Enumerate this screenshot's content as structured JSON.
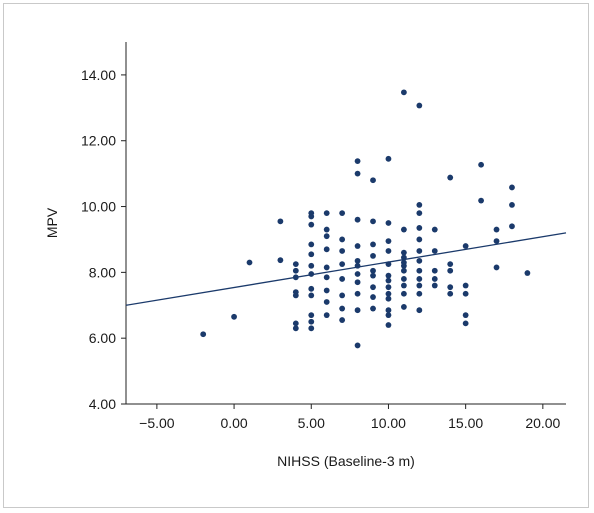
{
  "chart_data": {
    "type": "scatter",
    "title": "",
    "xlabel": "NIHSS (Baseline-3 m)",
    "ylabel": "MPV",
    "xlim": [
      -7,
      21.5
    ],
    "ylim": [
      4.0,
      15.0
    ],
    "x_ticks": [
      -5,
      0,
      5,
      10,
      15,
      20
    ],
    "x_tick_labels": [
      "−5.00",
      "0.00",
      "5.00",
      "10.00",
      "15.00",
      "20.00"
    ],
    "y_ticks": [
      4,
      6,
      8,
      10,
      12,
      14
    ],
    "y_tick_labels": [
      "4.00",
      "6.00",
      "8.00",
      "10.00",
      "12.00",
      "14.00"
    ],
    "grid": false,
    "point_color": "#1b3a6b",
    "line_color": "#1b3a6b",
    "fit_line": {
      "x": [
        -7,
        21.5
      ],
      "y": [
        7.0,
        9.2
      ]
    },
    "points": [
      {
        "x": -2,
        "y": 6.12
      },
      {
        "x": 0,
        "y": 6.65
      },
      {
        "x": 1,
        "y": 8.3
      },
      {
        "x": 3,
        "y": 9.55
      },
      {
        "x": 3,
        "y": 8.37
      },
      {
        "x": 4,
        "y": 8.25
      },
      {
        "x": 4,
        "y": 8.05
      },
      {
        "x": 4,
        "y": 7.85
      },
      {
        "x": 4,
        "y": 7.4
      },
      {
        "x": 4,
        "y": 7.3
      },
      {
        "x": 4,
        "y": 6.45
      },
      {
        "x": 4,
        "y": 6.3
      },
      {
        "x": 5,
        "y": 9.8
      },
      {
        "x": 5,
        "y": 9.7
      },
      {
        "x": 5,
        "y": 9.45
      },
      {
        "x": 5,
        "y": 8.85
      },
      {
        "x": 5,
        "y": 8.55
      },
      {
        "x": 5,
        "y": 8.2
      },
      {
        "x": 5,
        "y": 7.95
      },
      {
        "x": 5,
        "y": 7.5
      },
      {
        "x": 5,
        "y": 7.3
      },
      {
        "x": 5,
        "y": 6.7
      },
      {
        "x": 5,
        "y": 6.5
      },
      {
        "x": 5,
        "y": 6.3
      },
      {
        "x": 6,
        "y": 9.8
      },
      {
        "x": 6,
        "y": 9.3
      },
      {
        "x": 6,
        "y": 9.1
      },
      {
        "x": 6,
        "y": 8.7
      },
      {
        "x": 6,
        "y": 8.15
      },
      {
        "x": 6,
        "y": 7.85
      },
      {
        "x": 6,
        "y": 7.45
      },
      {
        "x": 6,
        "y": 7.1
      },
      {
        "x": 6,
        "y": 6.7
      },
      {
        "x": 7,
        "y": 9.8
      },
      {
        "x": 7,
        "y": 9.0
      },
      {
        "x": 7,
        "y": 8.65
      },
      {
        "x": 7,
        "y": 8.25
      },
      {
        "x": 7,
        "y": 7.8
      },
      {
        "x": 7,
        "y": 7.3
      },
      {
        "x": 7,
        "y": 6.9
      },
      {
        "x": 7,
        "y": 6.55
      },
      {
        "x": 8,
        "y": 11.38
      },
      {
        "x": 8,
        "y": 11.0
      },
      {
        "x": 8,
        "y": 9.6
      },
      {
        "x": 8,
        "y": 8.8
      },
      {
        "x": 8,
        "y": 8.35
      },
      {
        "x": 8,
        "y": 8.2
      },
      {
        "x": 8,
        "y": 7.95
      },
      {
        "x": 8,
        "y": 7.7
      },
      {
        "x": 8,
        "y": 7.35
      },
      {
        "x": 8,
        "y": 6.85
      },
      {
        "x": 8,
        "y": 5.78
      },
      {
        "x": 9,
        "y": 10.8
      },
      {
        "x": 9,
        "y": 9.55
      },
      {
        "x": 9,
        "y": 8.85
      },
      {
        "x": 9,
        "y": 8.5
      },
      {
        "x": 9,
        "y": 8.05
      },
      {
        "x": 9,
        "y": 7.9
      },
      {
        "x": 9,
        "y": 7.55
      },
      {
        "x": 9,
        "y": 7.25
      },
      {
        "x": 9,
        "y": 6.9
      },
      {
        "x": 10,
        "y": 11.45
      },
      {
        "x": 10,
        "y": 9.5
      },
      {
        "x": 10,
        "y": 8.95
      },
      {
        "x": 10,
        "y": 8.65
      },
      {
        "x": 10,
        "y": 8.25
      },
      {
        "x": 10,
        "y": 7.9
      },
      {
        "x": 10,
        "y": 7.75
      },
      {
        "x": 10,
        "y": 7.55
      },
      {
        "x": 10,
        "y": 7.35
      },
      {
        "x": 10,
        "y": 7.2
      },
      {
        "x": 10,
        "y": 6.85
      },
      {
        "x": 10,
        "y": 6.7
      },
      {
        "x": 10,
        "y": 6.4
      },
      {
        "x": 11,
        "y": 13.47
      },
      {
        "x": 11,
        "y": 9.3
      },
      {
        "x": 11,
        "y": 8.6
      },
      {
        "x": 11,
        "y": 8.45
      },
      {
        "x": 11,
        "y": 8.3
      },
      {
        "x": 11,
        "y": 8.2
      },
      {
        "x": 11,
        "y": 8.05
      },
      {
        "x": 11,
        "y": 7.8
      },
      {
        "x": 11,
        "y": 7.6
      },
      {
        "x": 11,
        "y": 7.35
      },
      {
        "x": 11,
        "y": 6.95
      },
      {
        "x": 12,
        "y": 13.07
      },
      {
        "x": 12,
        "y": 10.05
      },
      {
        "x": 12,
        "y": 9.8
      },
      {
        "x": 12,
        "y": 9.35
      },
      {
        "x": 12,
        "y": 9.0
      },
      {
        "x": 12,
        "y": 8.65
      },
      {
        "x": 12,
        "y": 8.35
      },
      {
        "x": 12,
        "y": 8.05
      },
      {
        "x": 12,
        "y": 7.8
      },
      {
        "x": 12,
        "y": 7.6
      },
      {
        "x": 12,
        "y": 7.35
      },
      {
        "x": 12,
        "y": 6.85
      },
      {
        "x": 13,
        "y": 9.3
      },
      {
        "x": 13,
        "y": 8.65
      },
      {
        "x": 13,
        "y": 8.05
      },
      {
        "x": 13,
        "y": 7.8
      },
      {
        "x": 13,
        "y": 7.6
      },
      {
        "x": 14,
        "y": 10.88
      },
      {
        "x": 14,
        "y": 8.25
      },
      {
        "x": 14,
        "y": 8.05
      },
      {
        "x": 14,
        "y": 7.55
      },
      {
        "x": 14,
        "y": 7.35
      },
      {
        "x": 15,
        "y": 8.8
      },
      {
        "x": 15,
        "y": 7.6
      },
      {
        "x": 15,
        "y": 7.35
      },
      {
        "x": 15,
        "y": 6.7
      },
      {
        "x": 15,
        "y": 6.45
      },
      {
        "x": 16,
        "y": 11.27
      },
      {
        "x": 16,
        "y": 10.18
      },
      {
        "x": 17,
        "y": 9.3
      },
      {
        "x": 17,
        "y": 8.95
      },
      {
        "x": 17,
        "y": 8.15
      },
      {
        "x": 18,
        "y": 10.58
      },
      {
        "x": 18,
        "y": 10.05
      },
      {
        "x": 18,
        "y": 9.4
      },
      {
        "x": 19,
        "y": 7.98
      }
    ]
  }
}
